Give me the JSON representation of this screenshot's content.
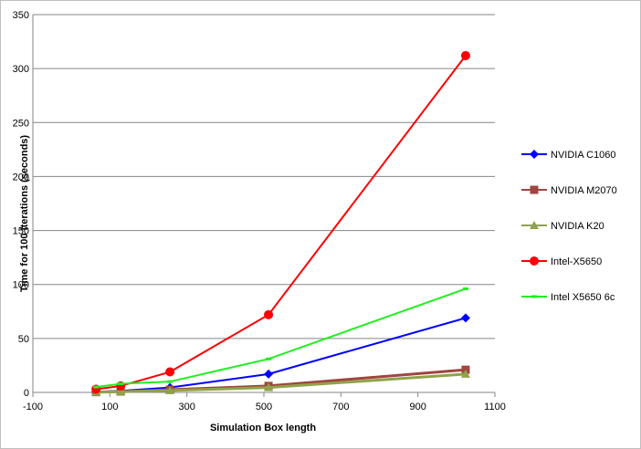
{
  "chart_data": {
    "type": "line",
    "title": "",
    "xlabel": "Simulation  Box length",
    "ylabel": "Time for 100 Iterations (seconds)",
    "xlim": [
      -100,
      1100
    ],
    "ylim": [
      0,
      350
    ],
    "xticks": [
      -100,
      100,
      300,
      500,
      700,
      900,
      1100
    ],
    "yticks": [
      0,
      50,
      100,
      150,
      200,
      250,
      300,
      350
    ],
    "grid": "horizontal",
    "legend_position": "right",
    "x": [
      64,
      128,
      256,
      512,
      1024
    ],
    "series": [
      {
        "name": "NVIDIA C1060",
        "color": "#0000ff",
        "marker": "diamond",
        "values": [
          0.5,
          1.5,
          4.5,
          17,
          69
        ]
      },
      {
        "name": "NVIDIA M2070",
        "color": "#a0453f",
        "marker": "square",
        "values": [
          0.3,
          0.8,
          2.5,
          6,
          21
        ]
      },
      {
        "name": "NVIDIA K20",
        "color": "#8fa34a",
        "marker": "triangle",
        "values": [
          0.2,
          0.6,
          1.8,
          4.5,
          17
        ]
      },
      {
        "name": "Intel-X5650",
        "color": "#ff0000",
        "marker": "circle",
        "values": [
          3,
          6,
          19,
          72,
          312
        ]
      },
      {
        "name": "Intel X5650 6c",
        "color": "#22ee22",
        "marker": "dash",
        "values": [
          5,
          8,
          10,
          31,
          96
        ]
      }
    ]
  }
}
